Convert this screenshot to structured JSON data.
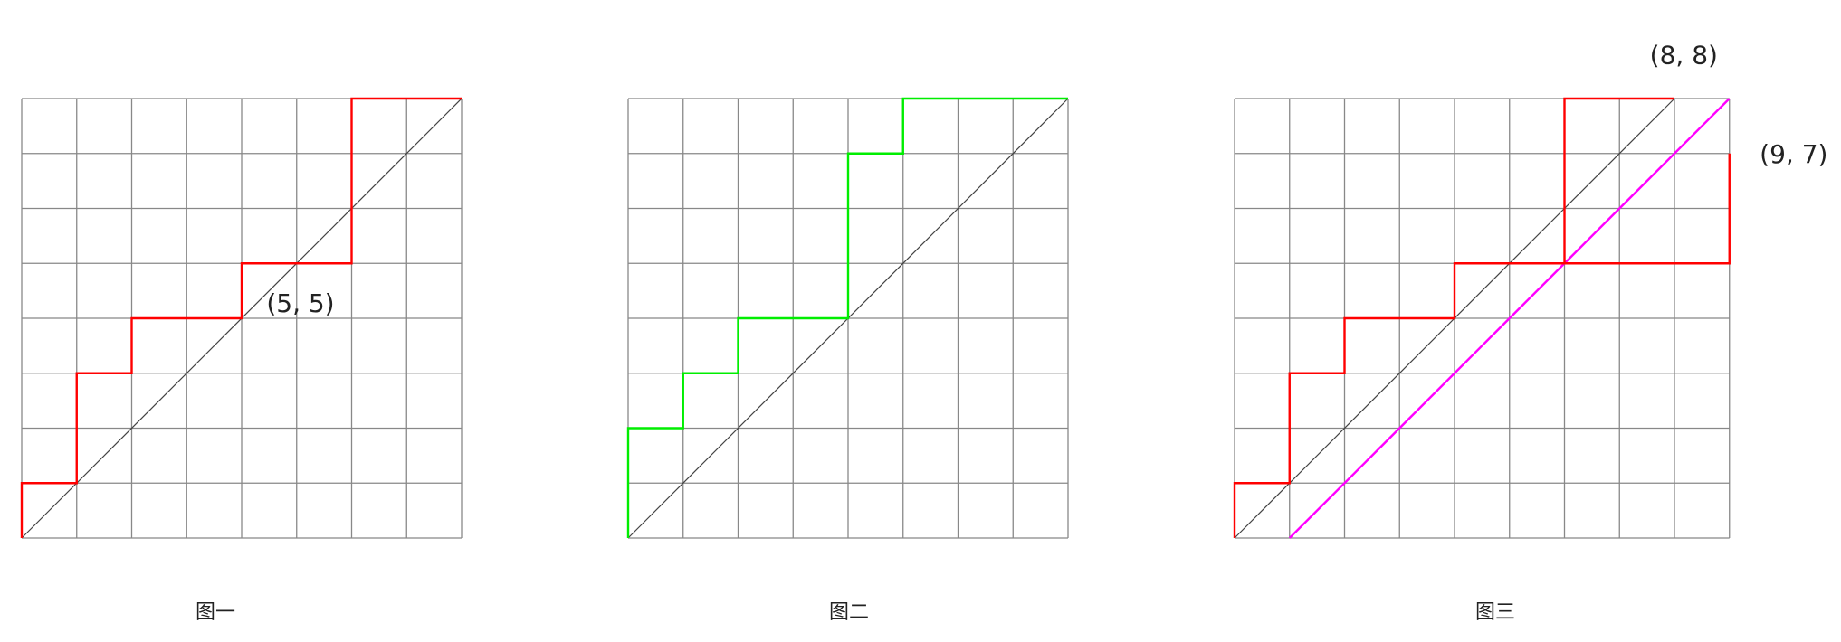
{
  "figures": [
    {
      "caption": "图一",
      "grid": {
        "cols": 8,
        "rows": 8
      },
      "path_color": "#ff0000",
      "path": [
        [
          0,
          0
        ],
        [
          0,
          1
        ],
        [
          1,
          1
        ],
        [
          1,
          3
        ],
        [
          2,
          3
        ],
        [
          2,
          4
        ],
        [
          4,
          4
        ],
        [
          4,
          5
        ],
        [
          6,
          5
        ],
        [
          6,
          8
        ],
        [
          8,
          8
        ]
      ],
      "annotations": [
        {
          "text": "(5, 5)",
          "at": [
            4.45,
            4.28
          ]
        }
      ]
    },
    {
      "caption": "图二",
      "grid": {
        "cols": 8,
        "rows": 8
      },
      "path_color": "#00ee00",
      "path": [
        [
          0,
          0
        ],
        [
          0,
          2
        ],
        [
          1,
          2
        ],
        [
          1,
          3
        ],
        [
          2,
          3
        ],
        [
          2,
          4
        ],
        [
          4,
          4
        ],
        [
          4,
          7
        ],
        [
          5,
          7
        ],
        [
          5,
          8
        ],
        [
          8,
          8
        ]
      ],
      "annotations": []
    },
    {
      "caption": "图三",
      "grid": {
        "cols": 9,
        "rows": 8
      },
      "path_color": "#ff0000",
      "path": [
        [
          0,
          0
        ],
        [
          0,
          1
        ],
        [
          1,
          1
        ],
        [
          1,
          3
        ],
        [
          2,
          3
        ],
        [
          2,
          4
        ],
        [
          4,
          4
        ],
        [
          4,
          5
        ],
        [
          6,
          5
        ],
        [
          6,
          8
        ],
        [
          8,
          8
        ]
      ],
      "extension_path": [
        [
          6,
          5
        ],
        [
          9,
          5
        ],
        [
          9,
          7
        ]
      ],
      "shifted_line_color": "#ff00ff",
      "shifted_line": [
        [
          1,
          0
        ],
        [
          9,
          8
        ]
      ],
      "annotations": [
        {
          "text": "(8, 8)",
          "at": [
            7.55,
            8.8
          ]
        },
        {
          "text": "(9, 7)",
          "at": [
            9.55,
            7.0
          ]
        }
      ]
    }
  ],
  "colors": {
    "grid": "#888888",
    "diagonal": "#444444"
  }
}
